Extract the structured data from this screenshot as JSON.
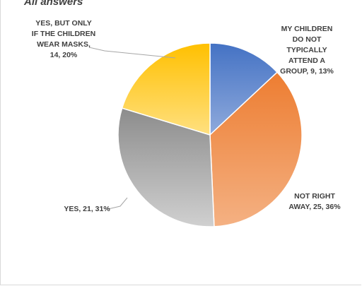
{
  "chart_data": {
    "type": "pie",
    "title": "All answers",
    "slices": [
      {
        "label": "MY CHILDREN DO NOT TYPICALLY ATTEND A GROUP",
        "value": 9,
        "percent": "13%",
        "color_top": "#4472c4",
        "color_bottom": "#8faadc"
      },
      {
        "label": "NOT RIGHT AWAY",
        "value": 25,
        "percent": "36%",
        "color_top": "#ed7d31",
        "color_bottom": "#f4b183"
      },
      {
        "label": "YES",
        "value": 21,
        "percent": "31%",
        "color_top": "#8c8c8c",
        "color_bottom": "#d0d0d0"
      },
      {
        "label": "YES, BUT ONLY IF THE CHILDREN WEAR MASKS",
        "value": 14,
        "percent": "20%",
        "color_top": "#ffc000",
        "color_bottom": "#ffe080"
      }
    ],
    "data_labels": [
      [
        "MY CHILDREN",
        "DO NOT",
        "TYPICALLY",
        "ATTEND A",
        "GROUP, 9, 13%"
      ],
      [
        "NOT RIGHT",
        "AWAY, 25, 36%"
      ],
      [
        "YES, 21, 31%"
      ],
      [
        "YES, BUT ONLY",
        "IF THE CHILDREN",
        "WEAR MASKS,",
        "14, 20%"
      ]
    ]
  }
}
